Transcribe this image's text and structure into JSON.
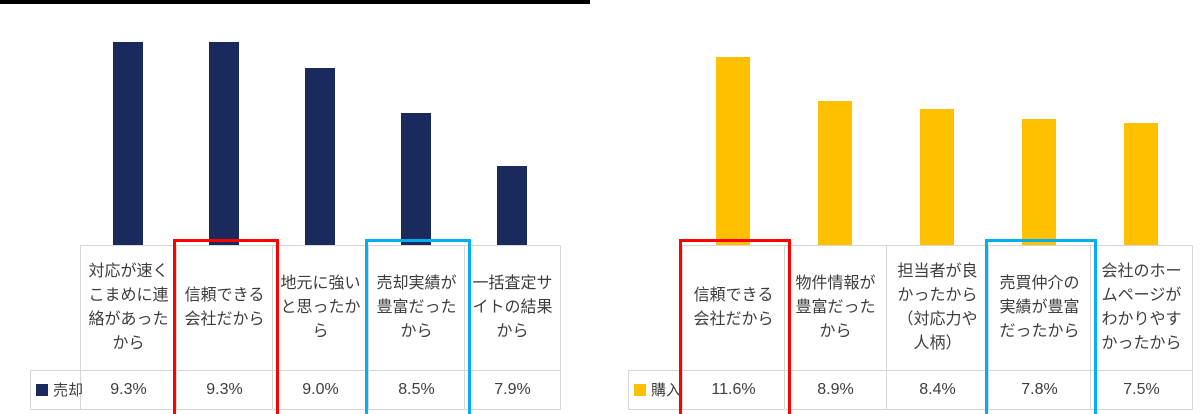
{
  "highlight_colors": {
    "red": "#ff0000",
    "blue": "#00b0f0"
  },
  "chart_data": [
    {
      "type": "bar",
      "title": "",
      "xlabel": "",
      "ylabel": "",
      "unit": "%",
      "legend": "売却",
      "legend_position": "bottom-left-table",
      "bar_color": "#1a2a5c",
      "grid": false,
      "ylim": [
        7.0,
        9.3
      ],
      "categories": [
        "対応が速くこまめに連絡があったから",
        "信頼できる会社だから",
        "地元に強いと思ったから",
        "売却実績が豊富だったから",
        "一括査定サイトの結果から"
      ],
      "values": [
        9.3,
        9.3,
        9.0,
        8.5,
        7.9
      ],
      "value_labels": [
        "9.3%",
        "9.3%",
        "9.0%",
        "8.5%",
        "7.9%"
      ],
      "highlights": [
        {
          "index": 1,
          "color": "red"
        },
        {
          "index": 3,
          "color": "blue"
        }
      ]
    },
    {
      "type": "bar",
      "title": "",
      "xlabel": "",
      "ylabel": "",
      "unit": "%",
      "legend": "購入",
      "legend_position": "bottom-left-table",
      "bar_color": "#ffc000",
      "grid": false,
      "ylim": [
        0,
        11.6
      ],
      "categories": [
        "信頼できる会社だから",
        "物件情報が豊富だったから",
        "担当者が良かったから（対応力や人柄）",
        "売買仲介の実績が豊富だったから",
        "会社のホームページがわかりやすかったから"
      ],
      "values": [
        11.6,
        8.9,
        8.4,
        7.8,
        7.5
      ],
      "value_labels": [
        "11.6%",
        "8.9%",
        "8.4%",
        "7.8%",
        "7.5%"
      ],
      "highlights": [
        {
          "index": 0,
          "color": "red"
        },
        {
          "index": 3,
          "color": "blue"
        }
      ]
    }
  ]
}
